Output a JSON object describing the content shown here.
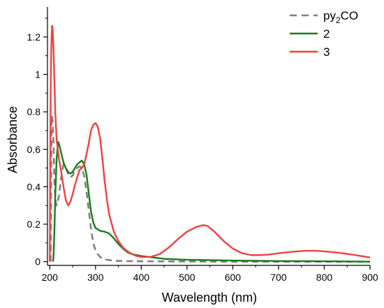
{
  "chart_data": {
    "type": "line",
    "title": "",
    "xlabel": "Wavelength (nm)",
    "ylabel": "Absorbance",
    "xlim": [
      195,
      900
    ],
    "ylim": [
      -0.02,
      1.36
    ],
    "x_ticks": [
      200,
      300,
      400,
      500,
      600,
      700,
      800,
      900
    ],
    "y_ticks": [
      0,
      0.2,
      0.4,
      0.6,
      0.8,
      1,
      1.2
    ],
    "x_tick_labels": [
      "200",
      "300",
      "400",
      "500",
      "600",
      "700",
      "800",
      "900"
    ],
    "y_tick_labels": [
      "0",
      "0.2",
      "0.4",
      "0.6",
      "0.8",
      "1",
      "1.2"
    ],
    "grid": false,
    "legend_position": "top-right",
    "legend": [
      {
        "main": "py",
        "sub": "2",
        "tail": "CO"
      },
      {
        "main": "2",
        "sub": "",
        "tail": ""
      },
      {
        "main": "3",
        "sub": "",
        "tail": ""
      }
    ],
    "series": [
      {
        "name": "py2CO",
        "color": "#7f7f7f",
        "style": "dashed",
        "points": [
          [
            202,
            0.0
          ],
          [
            203,
            0.5
          ],
          [
            204,
            0.75
          ],
          [
            205,
            0.78
          ],
          [
            206,
            0.76
          ],
          [
            208,
            0.65
          ],
          [
            210,
            0.45
          ],
          [
            212,
            0.33
          ],
          [
            215,
            0.3
          ],
          [
            220,
            0.35
          ],
          [
            225,
            0.45
          ],
          [
            230,
            0.52
          ],
          [
            235,
            0.5
          ],
          [
            240,
            0.47
          ],
          [
            245,
            0.45
          ],
          [
            250,
            0.46
          ],
          [
            255,
            0.49
          ],
          [
            260,
            0.5
          ],
          [
            265,
            0.51
          ],
          [
            270,
            0.5
          ],
          [
            275,
            0.46
          ],
          [
            280,
            0.38
          ],
          [
            285,
            0.28
          ],
          [
            290,
            0.18
          ],
          [
            295,
            0.1
          ],
          [
            300,
            0.06
          ],
          [
            305,
            0.04
          ],
          [
            310,
            0.025
          ],
          [
            320,
            0.012
          ],
          [
            340,
            0.005
          ],
          [
            360,
            0.003
          ],
          [
            400,
            0.002
          ],
          [
            500,
            0.001
          ],
          [
            600,
            0.0
          ],
          [
            700,
            0.0
          ],
          [
            800,
            0.0
          ],
          [
            900,
            0.0
          ]
        ]
      },
      {
        "name": "2",
        "color": "#1a7a1a",
        "style": "solid",
        "points": [
          [
            207,
            0.0
          ],
          [
            208,
            0.02
          ],
          [
            210,
            0.15
          ],
          [
            212,
            0.35
          ],
          [
            215,
            0.55
          ],
          [
            218,
            0.64
          ],
          [
            220,
            0.63
          ],
          [
            225,
            0.58
          ],
          [
            230,
            0.53
          ],
          [
            235,
            0.5
          ],
          [
            240,
            0.48
          ],
          [
            245,
            0.47
          ],
          [
            250,
            0.48
          ],
          [
            255,
            0.5
          ],
          [
            260,
            0.52
          ],
          [
            265,
            0.53
          ],
          [
            270,
            0.54
          ],
          [
            275,
            0.52
          ],
          [
            280,
            0.47
          ],
          [
            285,
            0.37
          ],
          [
            290,
            0.27
          ],
          [
            295,
            0.21
          ],
          [
            300,
            0.18
          ],
          [
            310,
            0.165
          ],
          [
            320,
            0.16
          ],
          [
            330,
            0.15
          ],
          [
            340,
            0.125
          ],
          [
            350,
            0.095
          ],
          [
            360,
            0.07
          ],
          [
            370,
            0.05
          ],
          [
            380,
            0.04
          ],
          [
            400,
            0.03
          ],
          [
            450,
            0.015
          ],
          [
            500,
            0.01
          ],
          [
            600,
            0.006
          ],
          [
            700,
            0.003
          ],
          [
            800,
            0.002
          ],
          [
            900,
            0.0
          ]
        ]
      },
      {
        "name": "3",
        "color": "#f04040",
        "style": "solid",
        "points": [
          [
            200,
            0.0
          ],
          [
            201,
            0.5
          ],
          [
            202,
            0.9
          ],
          [
            203,
            1.1
          ],
          [
            204,
            1.2
          ],
          [
            205,
            1.26
          ],
          [
            206,
            1.25
          ],
          [
            208,
            1.15
          ],
          [
            210,
            0.98
          ],
          [
            212,
            0.8
          ],
          [
            215,
            0.65
          ],
          [
            220,
            0.55
          ],
          [
            225,
            0.48
          ],
          [
            230,
            0.4
          ],
          [
            235,
            0.33
          ],
          [
            240,
            0.3
          ],
          [
            245,
            0.32
          ],
          [
            250,
            0.36
          ],
          [
            255,
            0.41
          ],
          [
            260,
            0.45
          ],
          [
            265,
            0.49
          ],
          [
            270,
            0.5
          ],
          [
            275,
            0.52
          ],
          [
            280,
            0.57
          ],
          [
            285,
            0.63
          ],
          [
            290,
            0.7
          ],
          [
            295,
            0.73
          ],
          [
            300,
            0.74
          ],
          [
            305,
            0.72
          ],
          [
            310,
            0.66
          ],
          [
            315,
            0.55
          ],
          [
            320,
            0.43
          ],
          [
            325,
            0.33
          ],
          [
            330,
            0.25
          ],
          [
            340,
            0.16
          ],
          [
            350,
            0.11
          ],
          [
            360,
            0.075
          ],
          [
            370,
            0.055
          ],
          [
            380,
            0.04
          ],
          [
            390,
            0.03
          ],
          [
            400,
            0.025
          ],
          [
            420,
            0.025
          ],
          [
            440,
            0.04
          ],
          [
            460,
            0.075
          ],
          [
            480,
            0.12
          ],
          [
            500,
            0.16
          ],
          [
            520,
            0.185
          ],
          [
            535,
            0.195
          ],
          [
            545,
            0.19
          ],
          [
            560,
            0.16
          ],
          [
            580,
            0.11
          ],
          [
            600,
            0.07
          ],
          [
            620,
            0.045
          ],
          [
            640,
            0.035
          ],
          [
            660,
            0.035
          ],
          [
            680,
            0.038
          ],
          [
            700,
            0.045
          ],
          [
            720,
            0.05
          ],
          [
            740,
            0.055
          ],
          [
            760,
            0.058
          ],
          [
            780,
            0.058
          ],
          [
            800,
            0.055
          ],
          [
            820,
            0.05
          ],
          [
            840,
            0.045
          ],
          [
            860,
            0.038
          ],
          [
            880,
            0.03
          ],
          [
            900,
            0.022
          ]
        ]
      }
    ]
  }
}
